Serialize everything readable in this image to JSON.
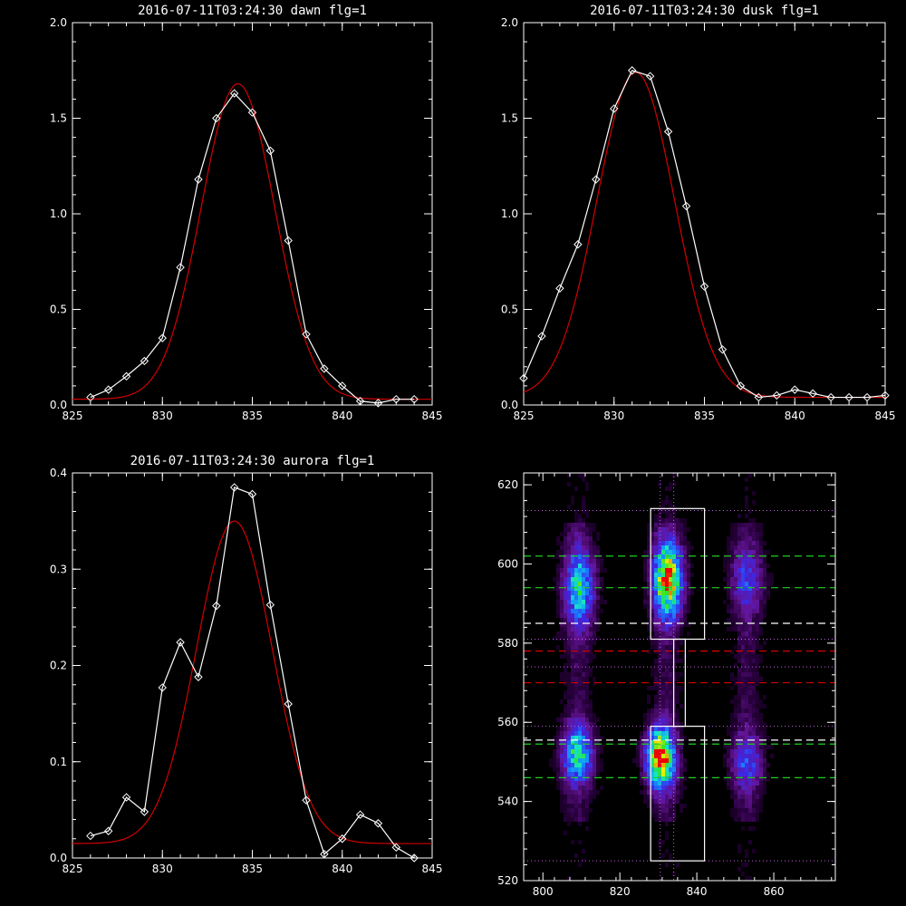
{
  "colors": {
    "background": "#000000",
    "data": "#ffffff",
    "fit": "#d40000",
    "green_dash": "#1fd01f",
    "red_dash": "#d40000",
    "dotted": "#c060e0"
  },
  "chart_data": [
    {
      "id": "dawn",
      "type": "line",
      "title": "2016-07-11T03:24:30 dawn flg=1",
      "xlim": [
        825,
        845
      ],
      "ylim": [
        0,
        2.0
      ],
      "xticks": [
        825,
        830,
        835,
        840,
        845
      ],
      "yticks": [
        0.0,
        0.5,
        1.0,
        1.5,
        2.0
      ],
      "ytick_labels": [
        "0.0",
        "0.5",
        "1.0",
        "1.5",
        "2.0"
      ],
      "series": [
        {
          "x": [
            826,
            827,
            828,
            829,
            830,
            831,
            832,
            833,
            834,
            835,
            836,
            837,
            838,
            839,
            840,
            841,
            842,
            843,
            844
          ],
          "y": [
            0.04,
            0.08,
            0.15,
            0.23,
            0.35,
            0.72,
            1.18,
            1.5,
            1.63,
            1.53,
            1.33,
            0.86,
            0.37,
            0.19,
            0.1,
            0.02,
            0.01,
            0.03,
            0.03
          ]
        }
      ],
      "fit": {
        "amplitude": 1.65,
        "center": 834.2,
        "sigma": 2.05,
        "baseline": 0.03
      }
    },
    {
      "id": "dusk",
      "type": "line",
      "title": "2016-07-11T03:24:30 dusk flg=1",
      "xlim": [
        825,
        845
      ],
      "ylim": [
        0,
        2.0
      ],
      "xticks": [
        825,
        830,
        835,
        840,
        845
      ],
      "yticks": [
        0.0,
        0.5,
        1.0,
        1.5,
        2.0
      ],
      "ytick_labels": [
        "0.0",
        "0.5",
        "1.0",
        "1.5",
        "2.0"
      ],
      "series": [
        {
          "x": [
            825,
            826,
            827,
            828,
            829,
            830,
            831,
            832,
            833,
            834,
            835,
            836,
            837,
            838,
            839,
            840,
            841,
            842,
            843,
            844,
            845
          ],
          "y": [
            0.14,
            0.36,
            0.61,
            0.84,
            1.18,
            1.55,
            1.75,
            1.72,
            1.43,
            1.04,
            0.62,
            0.29,
            0.1,
            0.04,
            0.05,
            0.08,
            0.06,
            0.04,
            0.04,
            0.04,
            0.05
          ]
        }
      ],
      "fit": {
        "amplitude": 1.7,
        "center": 831.2,
        "sigma": 2.15,
        "baseline": 0.04
      }
    },
    {
      "id": "aurora",
      "type": "line",
      "title": "2016-07-11T03:24:30 aurora flg=1",
      "xlim": [
        825,
        845
      ],
      "ylim": [
        0,
        0.4
      ],
      "xticks": [
        825,
        830,
        835,
        840,
        845
      ],
      "yticks": [
        0.0,
        0.1,
        0.2,
        0.3,
        0.4
      ],
      "ytick_labels": [
        "0.0",
        "0.1",
        "0.2",
        "0.3",
        "0.4"
      ],
      "series": [
        {
          "x": [
            826,
            827,
            828,
            829,
            830,
            831,
            832,
            833,
            834,
            835,
            836,
            837,
            838,
            839,
            840,
            841,
            842,
            843,
            844
          ],
          "y": [
            0.023,
            0.028,
            0.063,
            0.048,
            0.177,
            0.224,
            0.188,
            0.262,
            0.385,
            0.378,
            0.263,
            0.16,
            0.06,
            0.004,
            0.02,
            0.045,
            0.036,
            0.011,
            0.0
          ]
        }
      ],
      "fit": {
        "amplitude": 0.335,
        "center": 834.0,
        "sigma": 2.1,
        "baseline": 0.015
      }
    },
    {
      "id": "image",
      "type": "heatmap",
      "xlim": [
        795,
        876
      ],
      "ylim": [
        520,
        623
      ],
      "xticks": [
        800,
        820,
        840,
        860
      ],
      "yticks": [
        520,
        540,
        560,
        580,
        600,
        620
      ],
      "green_dashed_y": [
        602,
        594,
        554.5,
        546
      ],
      "white_dashed_y": [
        585,
        555.5
      ],
      "red_dashed_y": [
        578,
        570
      ],
      "dotted_y": [
        613.5,
        581,
        574,
        559,
        525
      ],
      "dotted_x": [
        830.5,
        834
      ],
      "boxes": [
        {
          "x": [
            828,
            842
          ],
          "y": [
            581,
            614
          ]
        },
        {
          "x": [
            828,
            842
          ],
          "y": [
            525,
            559
          ]
        },
        {
          "x": [
            834,
            837
          ],
          "y": [
            559,
            581
          ]
        }
      ],
      "blobs": [
        {
          "x": 830.5,
          "y": 551,
          "sx": 2.5,
          "sy": 5,
          "amp": 1.0
        },
        {
          "x": 832.5,
          "y": 596,
          "sx": 2.6,
          "sy": 6.5,
          "amp": 0.85
        },
        {
          "x": 809,
          "y": 552,
          "sx": 2.8,
          "sy": 5,
          "amp": 0.55
        },
        {
          "x": 809.5,
          "y": 594,
          "sx": 2.8,
          "sy": 7,
          "amp": 0.5
        },
        {
          "x": 853,
          "y": 550,
          "sx": 3,
          "sy": 5,
          "amp": 0.28
        },
        {
          "x": 853,
          "y": 596,
          "sx": 3,
          "sy": 6,
          "amp": 0.26
        }
      ]
    }
  ]
}
